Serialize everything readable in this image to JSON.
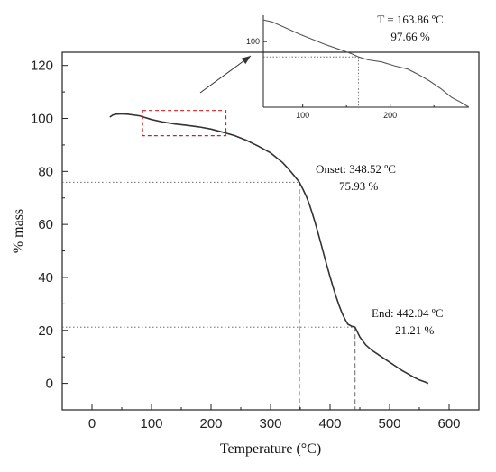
{
  "chart_data": [
    {
      "type": "line",
      "title": "",
      "xlabel": "Temperature (°C)",
      "ylabel": "% mass",
      "xlim": [
        -50,
        650
      ],
      "ylim": [
        -10,
        125
      ],
      "xticks": [
        0,
        100,
        200,
        300,
        400,
        500,
        600
      ],
      "yticks": [
        0,
        20,
        40,
        60,
        80,
        100,
        120
      ],
      "grid": false,
      "series": [
        {
          "x": [
            30,
            35,
            40,
            50,
            60,
            80,
            100,
            120,
            140,
            160,
            180,
            200,
            220,
            240,
            260,
            280,
            300,
            320,
            330,
            340,
            348.52,
            355,
            360,
            365,
            370,
            375,
            380,
            385,
            390,
            395,
            400,
            405,
            410,
            415,
            420,
            425,
            430,
            436,
            442.04,
            450,
            460,
            470,
            480,
            490,
            500,
            510,
            520,
            530,
            540,
            550,
            560,
            565
          ],
          "y": [
            100.5,
            101.3,
            101.6,
            101.7,
            101.6,
            101.0,
            99.6,
            98.6,
            97.9,
            97.4,
            96.8,
            96.0,
            94.8,
            93.5,
            91.7,
            89.5,
            87.0,
            83.4,
            81.0,
            78.3,
            75.93,
            73.0,
            70.6,
            67.7,
            64.3,
            60.6,
            56.6,
            52.5,
            48.3,
            44.2,
            40.2,
            36.4,
            32.8,
            29.5,
            26.6,
            24.2,
            22.3,
            21.6,
            21.21,
            17.5,
            14.5,
            12.5,
            11.0,
            9.5,
            8.0,
            6.5,
            5.0,
            3.7,
            2.4,
            1.3,
            0.5,
            0.0
          ]
        }
      ],
      "guides": [
        {
          "x": 348.52,
          "y": 75.93
        },
        {
          "x": 442.04,
          "y": 21.21
        }
      ],
      "annotations": [
        {
          "lines": [
            "Onset: 348.52 ºC",
            "75.93 %"
          ],
          "x": 348.52,
          "y": 75.93
        },
        {
          "lines": [
            "End: 442.04 ºC",
            "21.21 %"
          ],
          "x": 442.04,
          "y": 21.21
        }
      ],
      "highlight_box": {
        "x": [
          85,
          225
        ],
        "y": [
          93.5,
          103
        ]
      }
    },
    {
      "type": "line",
      "title": "",
      "xlim": [
        55,
        290
      ],
      "ylim": [
        90,
        104
      ],
      "xticks": [
        100,
        200
      ],
      "yticks": [
        100
      ],
      "grid": false,
      "series": [
        {
          "x": [
            55,
            65,
            80,
            95,
            110,
            125,
            140,
            155,
            163.86,
            175,
            190,
            205,
            220,
            232,
            245,
            258,
            270,
            280,
            290
          ],
          "y": [
            103.3,
            103.0,
            102.1,
            101.2,
            100.4,
            99.6,
            98.9,
            98.2,
            97.66,
            97.2,
            96.9,
            96.3,
            95.8,
            95.0,
            94.0,
            92.8,
            91.5,
            90.8,
            90.0
          ]
        }
      ],
      "guides": [
        {
          "x": 163.86,
          "y": 97.66
        }
      ],
      "annotations": [
        {
          "lines": [
            "T = 163.86 ºC",
            "97.66 %"
          ]
        }
      ]
    }
  ]
}
